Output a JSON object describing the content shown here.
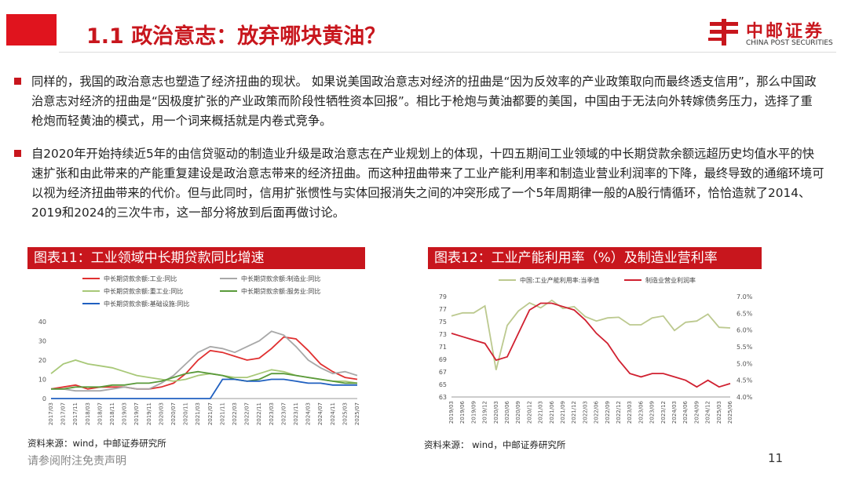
{
  "header": {
    "title": "1.1 政治意志：放弃哪块黄油？",
    "logo_cn": "中邮证券",
    "logo_en": "CHINA POST SECURITIES"
  },
  "paragraphs": [
    "同样的，我国的政治意志也塑造了经济扭曲的现状。 如果说美国政治意志对经济的扭曲是“因为反效率的产业政策取向而最终透支信用”，那么中国政治意志对经济的扭曲是“因极度扩张的产业政策而阶段性牺牲资本回报”。相比于枪炮与黄油都要的美国，中国由于无法向外转嫁债务压力，选择了重枪炮而轻黄油的模式，用一个词来概括就是内卷式竞争。",
    "自2020年开始持续近5年的由信贷驱动的制造业升级是政治意志在产业规划上的体现，十四五期间工业领域的中长期贷款余额远超历史均值水平的快速扩张和由此带来的产能重复建设是政治意志带来的经济扭曲。而这种扭曲带来了工业产能利用率和制造业营业利润率的下降，最终导致的通缩环境可以视为经济扭曲带来的代价。但与此同时，信用扩张惯性与实体回报消失之间的冲突形成了一个5年周期律一般的A股行情循环，恰恰造就了2014、2019和2024的三次牛市，这一部分将放到后面再做讨论。"
  ],
  "chart_data": [
    {
      "type": "line",
      "title": "图表11：工业领域中长期贷款同比增速",
      "source": "资料来源：wind，中邮证券研究所",
      "grid": false,
      "categories": [
        "2017/03",
        "2017/07",
        "2017/11",
        "2018/03",
        "2018/07",
        "2018/11",
        "2019/03",
        "2019/07",
        "2019/11",
        "2020/03",
        "2020/07",
        "2020/11",
        "2021/03",
        "2021/07",
        "2021/11",
        "2022/03",
        "2022/07",
        "2022/11",
        "2023/03",
        "2023/07",
        "2023/11",
        "2024/03",
        "2024/07",
        "2024/11",
        "2025/03",
        "2025/07"
      ],
      "ylim": [
        0,
        40
      ],
      "yticks": [
        0,
        10,
        20,
        30,
        40
      ],
      "series": [
        {
          "name": "中长期贷款余额:工业:同比",
          "color": "#e03030",
          "values": [
            5,
            6,
            7,
            5,
            6,
            6,
            6,
            5,
            5,
            6,
            8,
            13,
            20,
            25,
            24,
            22,
            20,
            21,
            26,
            32,
            31,
            25,
            18,
            14,
            11,
            10
          ]
        },
        {
          "name": "中长期贷款余额:制造业:同比",
          "color": "#a8a8a8",
          "values": [
            5,
            5,
            4,
            4,
            4,
            5,
            6,
            5,
            5,
            8,
            12,
            18,
            24,
            27,
            26,
            24,
            27,
            30,
            35,
            33,
            27,
            20,
            16,
            13,
            14,
            12
          ]
        },
        {
          "name": "中长期贷款余额:重工业:同比",
          "color": "#a8c878",
          "values": [
            13,
            18,
            20,
            18,
            17,
            16,
            14,
            12,
            11,
            10,
            9,
            10,
            12,
            13,
            12,
            11,
            11,
            13,
            15,
            14,
            12,
            11,
            10,
            9,
            9,
            8
          ]
        },
        {
          "name": "中长期贷款余额:服务业:同比",
          "color": "#5a9a3a",
          "values": [
            5,
            5,
            6,
            6,
            6,
            7,
            7,
            8,
            8,
            9,
            11,
            13,
            14,
            13,
            12,
            10,
            9,
            10,
            13,
            13,
            12,
            11,
            10,
            9,
            8,
            8
          ]
        },
        {
          "name": "中长期贷款余额:基础设施:同比",
          "color": "#2060c0",
          "values": [
            0,
            0,
            0,
            0,
            0,
            0,
            0,
            0,
            0,
            0,
            0,
            0,
            0,
            0,
            10,
            10,
            9,
            9,
            10,
            10,
            9,
            8,
            8,
            7,
            7,
            7
          ]
        }
      ]
    },
    {
      "type": "line",
      "title": "图表12：工业产能利用率（%）及制造业营利率",
      "source": "资料来源： wind，中邮证券研究所",
      "grid": false,
      "categories": [
        "2019/03",
        "2019/06",
        "2019/09",
        "2019/12",
        "2020/03",
        "2020/06",
        "2020/09",
        "2020/12",
        "2021/03",
        "2021/06",
        "2021/09",
        "2021/12",
        "2022/03",
        "2022/06",
        "2022/09",
        "2022/12",
        "2023/03",
        "2023/06",
        "2023/09",
        "2023/12",
        "2024/03",
        "2024/06",
        "2024/09",
        "2024/12",
        "2025/03",
        "2025/06"
      ],
      "ylim": [
        63,
        79
      ],
      "yticks": [
        63,
        65,
        67,
        69,
        71,
        73,
        75,
        77,
        79
      ],
      "y2lim": [
        4.0,
        7.0
      ],
      "y2ticks": [
        {
          "value": 4.0,
          "label": "4.0%"
        },
        {
          "value": 4.5,
          "label": "4.5%"
        },
        {
          "value": 5.0,
          "label": "5.0%"
        },
        {
          "value": 5.5,
          "label": "5.5%"
        },
        {
          "value": 6.0,
          "label": "6.0%"
        },
        {
          "value": 6.5,
          "label": "6.5%"
        },
        {
          "value": 7.0,
          "label": "7.0%"
        }
      ],
      "series": [
        {
          "name": "中国:工业产能利用率:当季值",
          "color": "#bcc98f",
          "values": [
            75.9,
            76.4,
            76.4,
            77.5,
            67.3,
            74.4,
            76.7,
            78.0,
            77.2,
            78.4,
            77.1,
            77.4,
            75.8,
            75.1,
            75.6,
            75.7,
            74.5,
            74.5,
            75.6,
            75.9,
            73.6,
            74.9,
            75.1,
            76.2,
            74.1,
            74.0
          ]
        },
        {
          "name": "制造业营业利润率",
          "color": "#d02030",
          "axis": "y2",
          "values": [
            5.9,
            5.8,
            5.7,
            5.6,
            5.1,
            5.2,
            5.9,
            6.6,
            6.8,
            6.8,
            6.7,
            6.6,
            6.3,
            5.9,
            5.6,
            5.1,
            4.7,
            4.6,
            4.7,
            4.7,
            4.6,
            4.5,
            4.3,
            4.5,
            4.3,
            4.4
          ]
        }
      ]
    }
  ],
  "footer": {
    "disclaimer": "请参阅附注免责声明",
    "page": 11
  }
}
